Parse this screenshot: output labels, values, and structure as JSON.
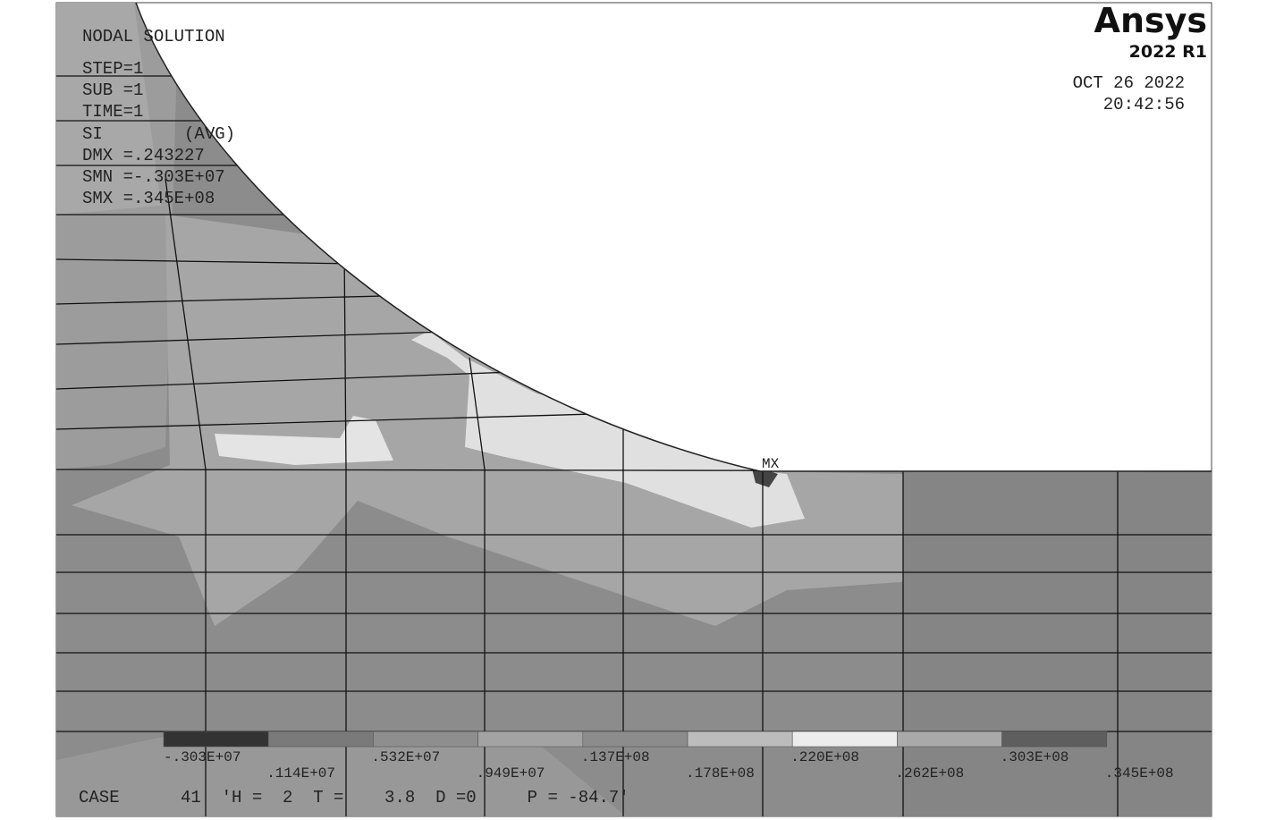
{
  "header": {
    "lines": [
      "NODAL SOLUTION",
      "STEP=1",
      "SUB =1",
      "TIME=1",
      "SI        (AVG)",
      "DMX =.243227",
      "SMN =-.303E+07",
      "SMX =.345E+08"
    ]
  },
  "logo": {
    "name": "Ansys",
    "version": "2022 R1"
  },
  "timestamp": {
    "date": "OCT 26 2022",
    "time": "20:42:56"
  },
  "max_marker": "MX",
  "legend": {
    "colors": [
      "#333333",
      "#7a7a7a",
      "#8e8e8e",
      "#a3a3a3",
      "#8c8c8c",
      "#bcbcbc",
      "#ececec",
      "#a9a9a9",
      "#5e5e5e"
    ],
    "labels": [
      "-.303E+07",
      ".114E+07",
      ".532E+07",
      ".949E+07",
      ".137E+08",
      ".178E+08",
      ".220E+08",
      ".262E+08",
      ".303E+08",
      ".345E+08"
    ]
  },
  "footer": "CASE      41  'H =  2  T =    3.8  D =0     P = -84.7'"
}
